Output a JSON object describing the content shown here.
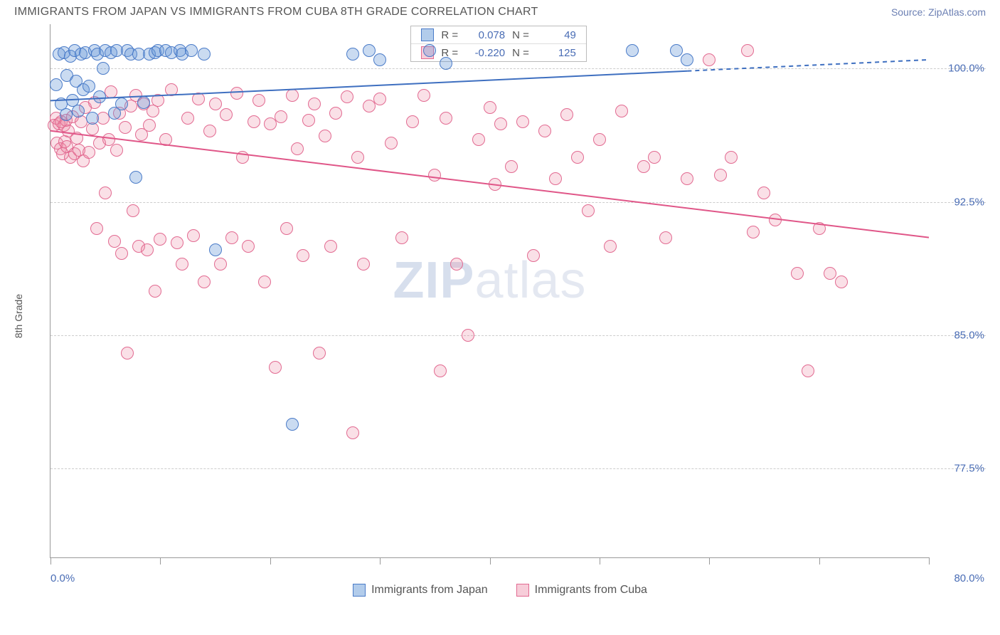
{
  "header": {
    "title": "IMMIGRANTS FROM JAPAN VS IMMIGRANTS FROM CUBA 8TH GRADE CORRELATION CHART",
    "source": "Source: ZipAtlas.com"
  },
  "chart": {
    "type": "scatter",
    "ylabel": "8th Grade",
    "watermark_a": "ZIP",
    "watermark_b": "atlas",
    "xlim": [
      0,
      80
    ],
    "ylim": [
      72.5,
      102.5
    ],
    "x_start_label": "0.0%",
    "x_end_label": "80.0%",
    "y_ticks": [
      {
        "v": 100.0,
        "label": "100.0%"
      },
      {
        "v": 92.5,
        "label": "92.5%"
      },
      {
        "v": 85.0,
        "label": "85.0%"
      },
      {
        "v": 77.5,
        "label": "77.5%"
      }
    ],
    "x_tick_positions": [
      0,
      10,
      20,
      30,
      40,
      50,
      60,
      70,
      80
    ],
    "grid_color": "#cccccc",
    "background_color": "#ffffff",
    "series": [
      {
        "name": "Immigrants from Japan",
        "color_fill": "rgba(102,153,216,0.35)",
        "color_stroke": "#4a7bc8",
        "r_label": "R =",
        "r_value": "0.078",
        "n_label": "N =",
        "n_value": "49",
        "trend": {
          "y_at_x0": 98.2,
          "y_at_x80": 100.5,
          "solid_until_x": 58,
          "color": "#3e6fc0"
        },
        "points": [
          [
            0.5,
            99.1
          ],
          [
            0.8,
            100.8
          ],
          [
            1.0,
            98.0
          ],
          [
            1.2,
            100.9
          ],
          [
            1.4,
            97.4
          ],
          [
            1.5,
            99.6
          ],
          [
            1.8,
            100.7
          ],
          [
            2.0,
            98.2
          ],
          [
            2.2,
            101.0
          ],
          [
            2.3,
            99.3
          ],
          [
            2.5,
            97.6
          ],
          [
            2.8,
            100.8
          ],
          [
            3.0,
            98.8
          ],
          [
            3.2,
            100.9
          ],
          [
            3.5,
            99.0
          ],
          [
            3.8,
            97.2
          ],
          [
            4.0,
            101.0
          ],
          [
            4.3,
            100.8
          ],
          [
            4.5,
            98.4
          ],
          [
            4.8,
            100.0
          ],
          [
            5.0,
            101.0
          ],
          [
            5.5,
            100.9
          ],
          [
            5.8,
            97.5
          ],
          [
            6.0,
            101.0
          ],
          [
            6.5,
            98.0
          ],
          [
            7.0,
            101.0
          ],
          [
            7.3,
            100.8
          ],
          [
            7.8,
            93.9
          ],
          [
            8.0,
            100.8
          ],
          [
            8.5,
            98.1
          ],
          [
            9.0,
            100.8
          ],
          [
            9.5,
            100.9
          ],
          [
            9.8,
            101.0
          ],
          [
            10.5,
            101.0
          ],
          [
            11.0,
            100.9
          ],
          [
            11.8,
            101.0
          ],
          [
            12.0,
            100.8
          ],
          [
            12.8,
            101.0
          ],
          [
            14.0,
            100.8
          ],
          [
            15.0,
            89.8
          ],
          [
            22.0,
            80.0
          ],
          [
            27.5,
            100.8
          ],
          [
            29.0,
            101.0
          ],
          [
            30.0,
            100.5
          ],
          [
            34.5,
            101.0
          ],
          [
            36.0,
            100.3
          ],
          [
            53.0,
            101.0
          ],
          [
            57.0,
            101.0
          ],
          [
            58.0,
            100.5
          ]
        ]
      },
      {
        "name": "Immigrants from Cuba",
        "color_fill": "rgba(235,130,160,0.25)",
        "color_stroke": "#e26a91",
        "r_label": "R =",
        "r_value": "-0.220",
        "n_label": "N =",
        "n_value": "125",
        "trend": {
          "y_at_x0": 96.5,
          "y_at_x80": 90.5,
          "solid_until_x": 80,
          "color": "#e05688"
        },
        "points": [
          [
            0.3,
            96.8
          ],
          [
            0.5,
            97.2
          ],
          [
            0.6,
            95.8
          ],
          [
            0.8,
            96.9
          ],
          [
            0.9,
            95.5
          ],
          [
            1.0,
            97.0
          ],
          [
            1.1,
            95.2
          ],
          [
            1.2,
            96.8
          ],
          [
            1.3,
            95.9
          ],
          [
            1.4,
            97.1
          ],
          [
            1.5,
            95.6
          ],
          [
            1.6,
            96.5
          ],
          [
            1.8,
            95.0
          ],
          [
            2.0,
            97.3
          ],
          [
            2.2,
            95.2
          ],
          [
            2.4,
            96.1
          ],
          [
            2.6,
            95.4
          ],
          [
            2.8,
            97.0
          ],
          [
            3.0,
            94.8
          ],
          [
            3.2,
            97.8
          ],
          [
            3.5,
            95.3
          ],
          [
            3.8,
            96.6
          ],
          [
            4.0,
            98.1
          ],
          [
            4.2,
            91.0
          ],
          [
            4.5,
            95.8
          ],
          [
            4.8,
            97.2
          ],
          [
            5.0,
            93.0
          ],
          [
            5.3,
            96.0
          ],
          [
            5.5,
            98.7
          ],
          [
            5.8,
            90.3
          ],
          [
            6.0,
            95.4
          ],
          [
            6.3,
            97.5
          ],
          [
            6.5,
            89.6
          ],
          [
            6.8,
            96.7
          ],
          [
            7.0,
            84.0
          ],
          [
            7.3,
            97.9
          ],
          [
            7.5,
            92.0
          ],
          [
            7.8,
            98.5
          ],
          [
            8.0,
            90.0
          ],
          [
            8.3,
            96.3
          ],
          [
            8.5,
            98.0
          ],
          [
            8.8,
            89.8
          ],
          [
            9.0,
            96.8
          ],
          [
            9.3,
            97.6
          ],
          [
            9.5,
            87.5
          ],
          [
            9.8,
            98.2
          ],
          [
            10.0,
            90.4
          ],
          [
            10.5,
            96.0
          ],
          [
            11.0,
            98.8
          ],
          [
            11.5,
            90.2
          ],
          [
            12.0,
            89.0
          ],
          [
            12.5,
            97.2
          ],
          [
            13.0,
            90.6
          ],
          [
            13.5,
            98.3
          ],
          [
            14.0,
            88.0
          ],
          [
            14.5,
            96.5
          ],
          [
            15.0,
            98.0
          ],
          [
            15.5,
            89.0
          ],
          [
            16.0,
            97.4
          ],
          [
            16.5,
            90.5
          ],
          [
            17.0,
            98.6
          ],
          [
            17.5,
            95.0
          ],
          [
            18.0,
            90.0
          ],
          [
            18.5,
            97.0
          ],
          [
            19.0,
            98.2
          ],
          [
            19.5,
            88.0
          ],
          [
            20.0,
            96.9
          ],
          [
            20.5,
            83.2
          ],
          [
            21.0,
            97.3
          ],
          [
            21.5,
            91.0
          ],
          [
            22.0,
            98.5
          ],
          [
            22.5,
            95.5
          ],
          [
            23.0,
            89.5
          ],
          [
            23.5,
            97.1
          ],
          [
            24.0,
            98.0
          ],
          [
            24.5,
            84.0
          ],
          [
            25.0,
            96.2
          ],
          [
            25.5,
            90.0
          ],
          [
            26.0,
            97.5
          ],
          [
            27.0,
            98.4
          ],
          [
            27.5,
            79.5
          ],
          [
            28.0,
            95.0
          ],
          [
            28.5,
            89.0
          ],
          [
            29.0,
            97.9
          ],
          [
            30.0,
            98.3
          ],
          [
            31.0,
            95.8
          ],
          [
            32.0,
            90.5
          ],
          [
            33.0,
            97.0
          ],
          [
            34.0,
            98.5
          ],
          [
            35.0,
            94.0
          ],
          [
            35.5,
            83.0
          ],
          [
            36.0,
            97.2
          ],
          [
            37.0,
            89.0
          ],
          [
            38.0,
            85.0
          ],
          [
            39.0,
            96.0
          ],
          [
            40.0,
            97.8
          ],
          [
            40.5,
            93.5
          ],
          [
            41.0,
            96.9
          ],
          [
            42.0,
            94.5
          ],
          [
            43.0,
            97.0
          ],
          [
            44.0,
            89.5
          ],
          [
            45.0,
            96.5
          ],
          [
            46.0,
            93.8
          ],
          [
            47.0,
            97.4
          ],
          [
            48.0,
            95.0
          ],
          [
            49.0,
            92.0
          ],
          [
            50.0,
            96.0
          ],
          [
            51.0,
            90.0
          ],
          [
            52.0,
            97.6
          ],
          [
            54.0,
            94.5
          ],
          [
            55.0,
            95.0
          ],
          [
            56.0,
            90.5
          ],
          [
            58.0,
            93.8
          ],
          [
            60.0,
            100.5
          ],
          [
            61.0,
            94.0
          ],
          [
            62.0,
            95.0
          ],
          [
            63.5,
            101.0
          ],
          [
            64.0,
            90.8
          ],
          [
            65.0,
            93.0
          ],
          [
            66.0,
            91.5
          ],
          [
            68.0,
            88.5
          ],
          [
            69.0,
            83.0
          ],
          [
            70.0,
            91.0
          ],
          [
            71.0,
            88.5
          ],
          [
            72.0,
            88.0
          ]
        ]
      }
    ],
    "bottom_legend": [
      {
        "swatch": "blue",
        "label": "Immigrants from Japan"
      },
      {
        "swatch": "pink",
        "label": "Immigrants from Cuba"
      }
    ]
  }
}
